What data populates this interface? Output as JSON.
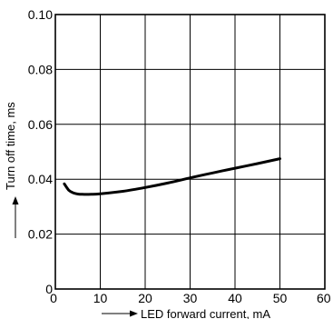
{
  "chart_data": {
    "type": "line",
    "title": "",
    "xlabel": "LED forward current, mA",
    "ylabel": "Turn off time, ms",
    "xlim": [
      0,
      60
    ],
    "ylim": [
      0,
      0.1
    ],
    "x_ticks": [
      "0",
      "10",
      "20",
      "30",
      "40",
      "50",
      "60"
    ],
    "y_ticks": [
      "0",
      "0.02",
      "0.04",
      "0.06",
      "0.08",
      "0.10"
    ],
    "grid": true,
    "series": [
      {
        "points": [
          [
            2,
            0.0383
          ],
          [
            3,
            0.036
          ],
          [
            4,
            0.035
          ],
          [
            5,
            0.0346
          ],
          [
            6,
            0.0345
          ],
          [
            8,
            0.0345
          ],
          [
            10,
            0.0347
          ],
          [
            15,
            0.0356
          ],
          [
            20,
            0.037
          ],
          [
            25,
            0.0386
          ],
          [
            30,
            0.0405
          ],
          [
            35,
            0.0423
          ],
          [
            40,
            0.044
          ],
          [
            45,
            0.0457
          ],
          [
            50,
            0.0475
          ]
        ]
      }
    ]
  }
}
